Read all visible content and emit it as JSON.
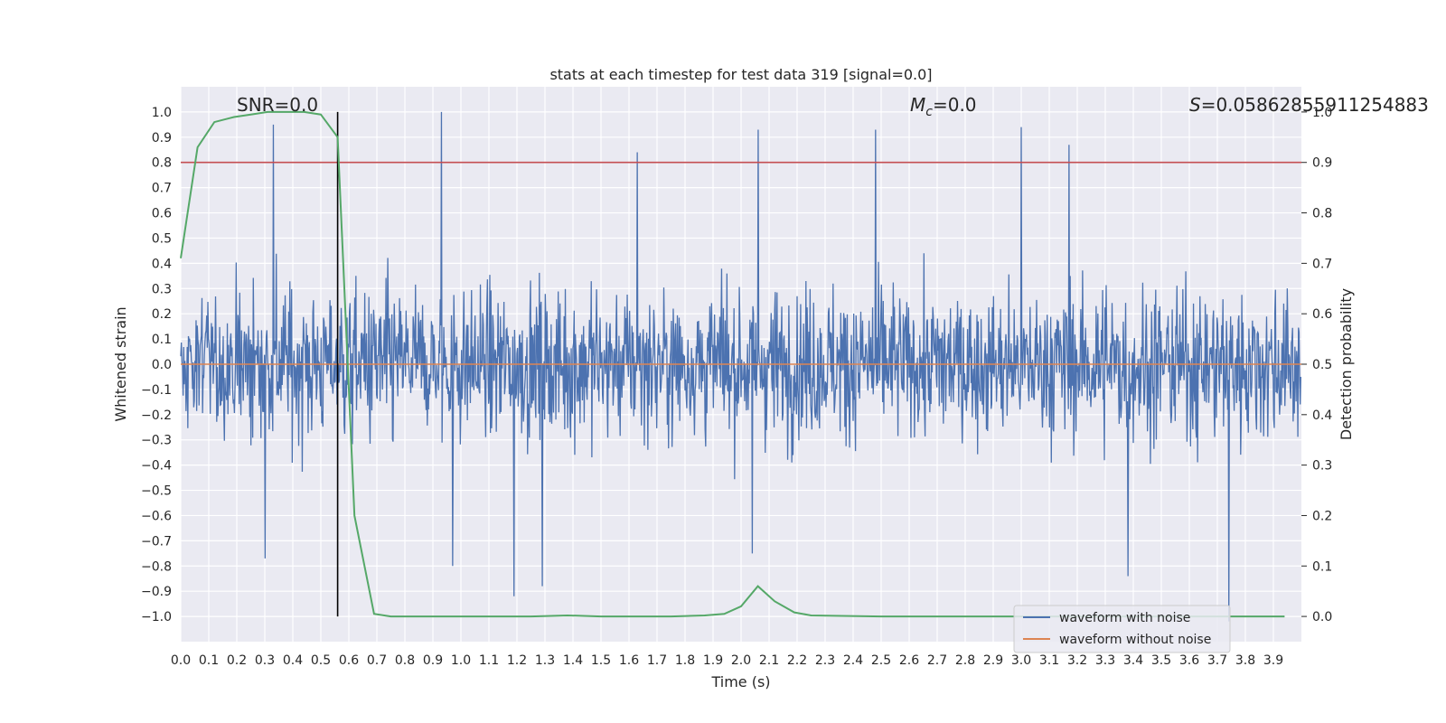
{
  "chart_data": {
    "type": "line",
    "title": "stats at each timestep for test data 319 [signal=0.0]",
    "xlabel": "Time (s)",
    "ylabel": "Whitened strain",
    "y2label": "Detection probability",
    "xlim": [
      0.0,
      4.0
    ],
    "ylim": [
      -1.1,
      1.1
    ],
    "y2lim": [
      -0.05,
      1.05
    ],
    "x_ticks": [
      "0.0",
      "0.1",
      "0.2",
      "0.3",
      "0.4",
      "0.5",
      "0.6",
      "0.7",
      "0.8",
      "0.9",
      "1.0",
      "1.1",
      "1.2",
      "1.3",
      "1.4",
      "1.5",
      "1.6",
      "1.7",
      "1.8",
      "1.9",
      "2.0",
      "2.1",
      "2.2",
      "2.3",
      "2.4",
      "2.5",
      "2.6",
      "2.7",
      "2.8",
      "2.9",
      "3.0",
      "3.1",
      "3.2",
      "3.3",
      "3.4",
      "3.5",
      "3.6",
      "3.7",
      "3.8",
      "3.9"
    ],
    "y_ticks": [
      "1.0",
      "0.9",
      "0.8",
      "0.7",
      "0.6",
      "0.5",
      "0.4",
      "0.3",
      "0.2",
      "0.1",
      "0.0",
      "−0.1",
      "−0.2",
      "−0.3",
      "−0.4",
      "−0.5",
      "−0.6",
      "−0.7",
      "−0.8",
      "−0.9",
      "−1.0"
    ],
    "y2_ticks": [
      "1.0",
      "0.9",
      "0.8",
      "0.7",
      "0.6",
      "0.5",
      "0.4",
      "0.3",
      "0.2",
      "0.1",
      "0.0"
    ],
    "annotations": {
      "snr": "SNR=0.0",
      "mc_symbol": "M",
      "mc_sub": "c",
      "mc_value": "=0.0",
      "s_symbol": "S",
      "s_value": "=0.05862855911254883"
    },
    "threshold_line": {
      "y": 0.8,
      "color": "#c44e52"
    },
    "vertical_line": {
      "x": 0.56,
      "color": "#000000"
    },
    "series": [
      {
        "name": "waveform with noise",
        "color": "#4c72b0",
        "noise_peaks_positive": [
          {
            "x": 0.33,
            "y": 0.95
          },
          {
            "x": 0.93,
            "y": 1.0
          },
          {
            "x": 2.06,
            "y": 0.93
          },
          {
            "x": 2.48,
            "y": 0.93
          },
          {
            "x": 3.0,
            "y": 0.94
          },
          {
            "x": 3.17,
            "y": 0.87
          },
          {
            "x": 1.63,
            "y": 0.84
          }
        ],
        "noise_peaks_negative": [
          {
            "x": 0.3,
            "y": -0.77
          },
          {
            "x": 0.97,
            "y": -0.8
          },
          {
            "x": 1.19,
            "y": -0.92
          },
          {
            "x": 1.29,
            "y": -0.88
          },
          {
            "x": 2.04,
            "y": -0.75
          },
          {
            "x": 3.38,
            "y": -0.84
          },
          {
            "x": 3.74,
            "y": -1.02
          }
        ]
      },
      {
        "name": "waveform without noise",
        "color": "#dd8452",
        "y": 0.0
      },
      {
        "name": "",
        "color": "#55a868",
        "axis": "right",
        "points": [
          [
            0.0,
            0.71
          ],
          [
            0.06,
            0.93
          ],
          [
            0.12,
            0.98
          ],
          [
            0.19,
            0.99
          ],
          [
            0.25,
            0.995
          ],
          [
            0.31,
            1.0
          ],
          [
            0.37,
            1.0
          ],
          [
            0.44,
            1.0
          ],
          [
            0.5,
            0.995
          ],
          [
            0.56,
            0.95
          ],
          [
            0.62,
            0.2
          ],
          [
            0.69,
            0.005
          ],
          [
            0.75,
            0.0
          ],
          [
            0.81,
            0.0
          ],
          [
            1.0,
            0.0
          ],
          [
            1.25,
            0.0
          ],
          [
            1.38,
            0.002
          ],
          [
            1.5,
            0.0
          ],
          [
            1.75,
            0.0
          ],
          [
            1.87,
            0.002
          ],
          [
            1.94,
            0.005
          ],
          [
            2.0,
            0.02
          ],
          [
            2.06,
            0.06
          ],
          [
            2.12,
            0.03
          ],
          [
            2.19,
            0.008
          ],
          [
            2.25,
            0.002
          ],
          [
            2.5,
            0.0
          ],
          [
            3.0,
            0.0
          ],
          [
            3.5,
            0.0
          ],
          [
            3.94,
            0.0
          ]
        ]
      }
    ],
    "legend": {
      "position": "lower-right",
      "entries": [
        "waveform with noise",
        "waveform without noise"
      ]
    },
    "grid": true,
    "colors": {
      "axes_bg": "#eaeaf2",
      "grid": "#ffffff"
    }
  }
}
